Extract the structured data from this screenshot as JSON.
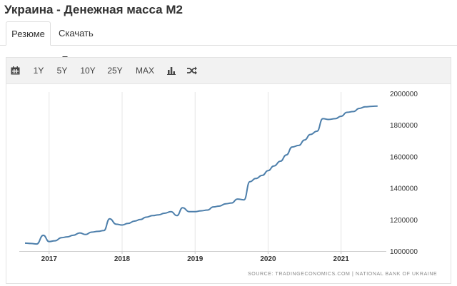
{
  "page": {
    "title": "Украина - Денежная масса M2"
  },
  "tabs": [
    {
      "label": "Резюме",
      "active": true
    },
    {
      "label": "Скачать",
      "dropdown": true
    }
  ],
  "toolbar": {
    "calendar_icon": "calendar-icon",
    "ranges": [
      "1Y",
      "5Y",
      "10Y",
      "25Y",
      "MAX"
    ],
    "bar_chart_icon": "bar-chart-icon",
    "shuffle_icon": "shuffle-icon"
  },
  "source": "SOURCE: TRADINGECONOMICS.COM | NATIONAL BANK OF UKRAINE",
  "colors": {
    "line": "#4d7fab",
    "grid": "#e5e5e5",
    "axis": "#333333"
  },
  "chart_data": {
    "type": "line",
    "title": "Украина - Денежная масса M2",
    "x_ticks": [
      "2017",
      "2018",
      "2019",
      "2020",
      "2021"
    ],
    "y_ticks": [
      "1000000",
      "1200000",
      "1400000",
      "1600000",
      "1800000",
      "2000000"
    ],
    "xlim": [
      2016.65,
      2021.6
    ],
    "ylim": [
      1000000,
      2000000
    ],
    "y_axis_position": "right",
    "grid": "vertical",
    "series": [
      {
        "name": "Денежная масса M2",
        "x": [
          2016.67,
          2016.75,
          2016.83,
          2016.92,
          2017.0,
          2017.08,
          2017.17,
          2017.25,
          2017.33,
          2017.42,
          2017.5,
          2017.58,
          2017.67,
          2017.75,
          2017.83,
          2017.92,
          2018.0,
          2018.08,
          2018.17,
          2018.25,
          2018.33,
          2018.42,
          2018.5,
          2018.58,
          2018.67,
          2018.75,
          2018.83,
          2018.92,
          2019.0,
          2019.08,
          2019.17,
          2019.25,
          2019.33,
          2019.42,
          2019.5,
          2019.58,
          2019.67,
          2019.75,
          2019.83,
          2019.92,
          2020.0,
          2020.08,
          2020.17,
          2020.25,
          2020.33,
          2020.42,
          2020.5,
          2020.58,
          2020.67,
          2020.75,
          2020.83,
          2020.92,
          2021.0,
          2021.08,
          2021.17,
          2021.25,
          2021.33,
          2021.42,
          2021.5
        ],
        "values": [
          1050000,
          1048000,
          1045000,
          1100000,
          1060000,
          1065000,
          1085000,
          1090000,
          1100000,
          1115000,
          1105000,
          1120000,
          1125000,
          1130000,
          1205000,
          1170000,
          1165000,
          1175000,
          1190000,
          1200000,
          1215000,
          1225000,
          1230000,
          1240000,
          1250000,
          1225000,
          1275000,
          1250000,
          1250000,
          1255000,
          1260000,
          1280000,
          1285000,
          1300000,
          1305000,
          1330000,
          1325000,
          1440000,
          1460000,
          1480000,
          1510000,
          1540000,
          1570000,
          1610000,
          1660000,
          1670000,
          1705000,
          1740000,
          1760000,
          1840000,
          1835000,
          1840000,
          1855000,
          1880000,
          1885000,
          1905000,
          1915000,
          1918000,
          1920000
        ]
      }
    ]
  }
}
